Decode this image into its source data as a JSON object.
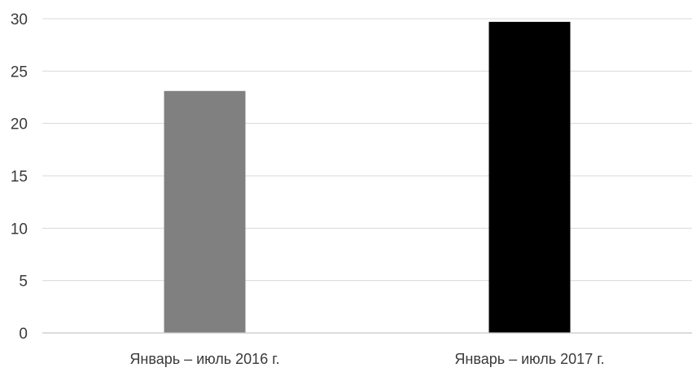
{
  "chart_data": {
    "type": "bar",
    "title": "",
    "xlabel": "",
    "ylabel": "",
    "categories": [
      "Январь – июль 2016 г.",
      "Январь – июль 2017 г."
    ],
    "values": [
      23.1,
      29.7
    ],
    "colors": [
      "#808080",
      "#000000"
    ],
    "ylim": [
      0,
      30
    ],
    "yticks": [
      0,
      5,
      10,
      15,
      20,
      25,
      30
    ],
    "grid": true,
    "legend": "none"
  }
}
